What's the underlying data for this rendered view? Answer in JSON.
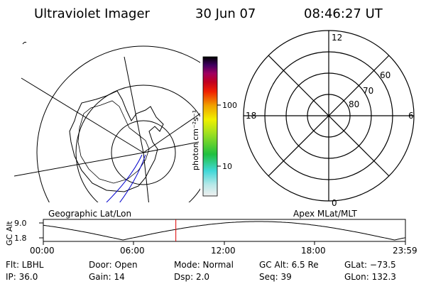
{
  "header": {
    "instrument": "Ultraviolet Imager",
    "date": "30 Jun 07",
    "time": "08:46:27 UT"
  },
  "colorbar": {
    "unit_label": "photon cm⁻²s⁻¹",
    "ticks": [
      "100",
      "10"
    ]
  },
  "polar_plot": {
    "mlt_labels": {
      "top": "12",
      "left": "18",
      "right": "6",
      "bottom": "0"
    },
    "lat_labels": [
      "80",
      "70",
      "60"
    ]
  },
  "timeline": {
    "left_title": "Geographic Lat/Lon",
    "right_title": "Apex MLat/MLT",
    "axis_label": "GC Alt",
    "y_ticks": [
      "9.0",
      "1.8"
    ],
    "x_ticks": [
      "00:00",
      "06:00",
      "12:00",
      "18:00",
      "23:59"
    ],
    "current_time_fraction": 0.366
  },
  "info": {
    "row1": {
      "flt": "Flt:  LBHL",
      "door": "Door:  Open",
      "mode": "Mode:  Normal",
      "gcalt": "GC Alt:  6.5 Re",
      "glat": "GLat:  −73.5"
    },
    "row2": {
      "ip": "IP:  36.0",
      "gain": "Gain:  14",
      "dsp": "Dsp:      2.0",
      "seq": "Seq:  39",
      "glon": "GLon:  132.3"
    }
  }
}
